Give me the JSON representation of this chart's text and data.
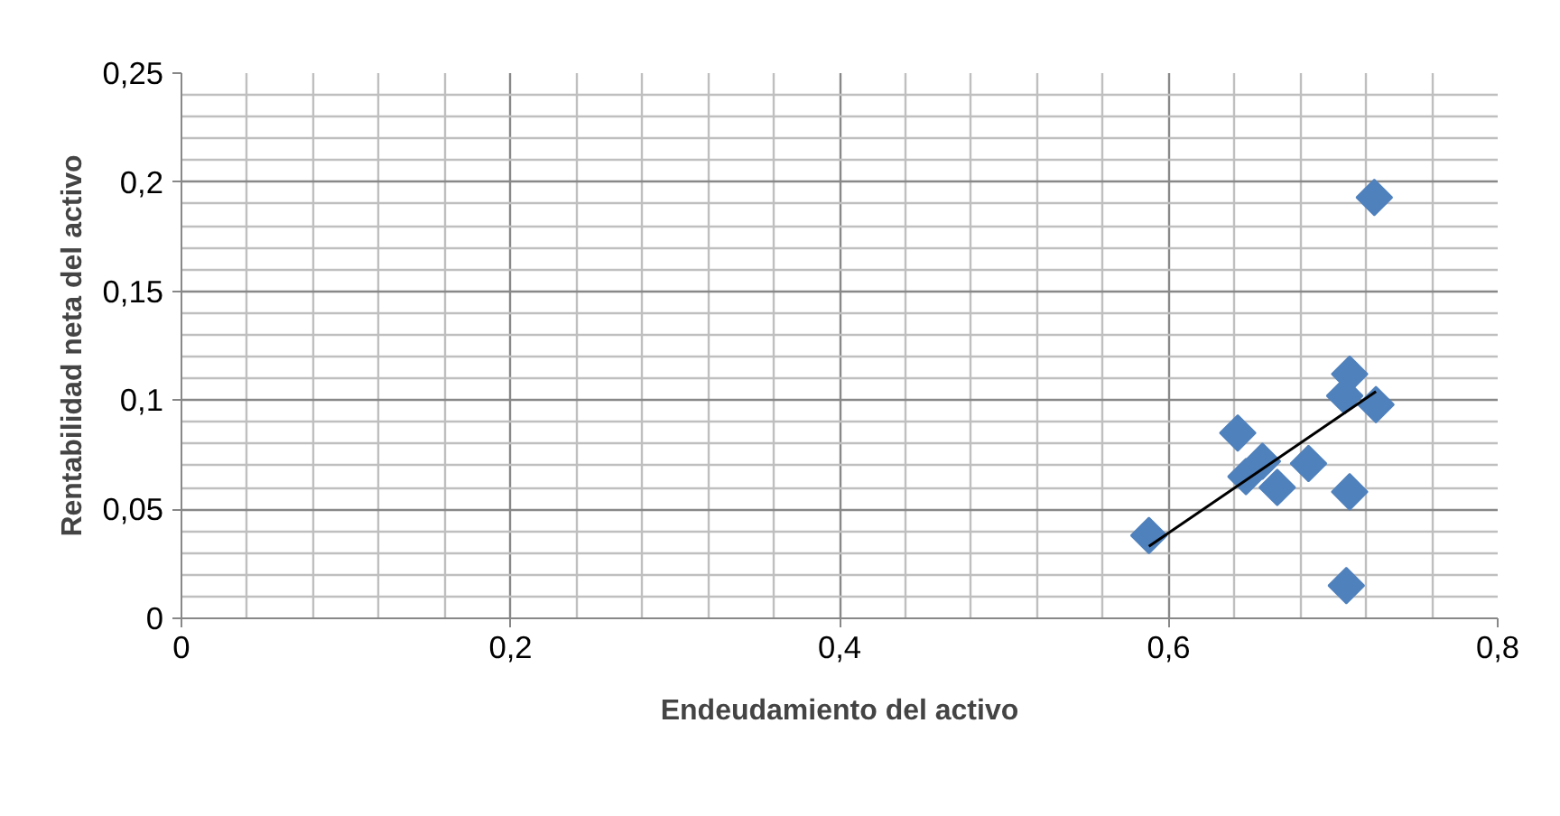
{
  "chart_data": {
    "type": "scatter",
    "xlabel": "Endeudamiento del activo",
    "ylabel": "Rentabilidad neta del activo",
    "xlim": [
      0,
      0.8
    ],
    "ylim": [
      0,
      0.25
    ],
    "xticks": [
      0,
      {
        "value": 0.2,
        "label": "0,2"
      },
      {
        "value": 0.4,
        "label": "0,4"
      },
      {
        "value": 0.6,
        "label": "0,6"
      },
      {
        "value": 0.8,
        "label": "0,8"
      }
    ],
    "yticks": [
      0,
      {
        "value": 0.05,
        "label": "0,05"
      },
      {
        "value": 0.1,
        "label": "0,1"
      },
      {
        "value": 0.15,
        "label": "0,15"
      },
      {
        "value": 0.2,
        "label": "0,2"
      },
      {
        "value": 0.25,
        "label": "0,25"
      }
    ],
    "grid": true,
    "marker": "diamond",
    "series": [
      {
        "color": "#4f81bd",
        "x": [
          0.725,
          0.71,
          0.707,
          0.726,
          0.642,
          0.657,
          0.647,
          0.666,
          0.685,
          0.71,
          0.708,
          0.588
        ],
        "values": [
          0.193,
          0.112,
          0.102,
          0.098,
          0.085,
          0.072,
          0.065,
          0.06,
          0.071,
          0.058,
          0.015,
          0.038
        ]
      },
      {
        "type": "line",
        "marker": "none",
        "color": "#000000",
        "x": [
          0.588,
          0.726
        ],
        "values": [
          0.033,
          0.104
        ]
      }
    ]
  }
}
